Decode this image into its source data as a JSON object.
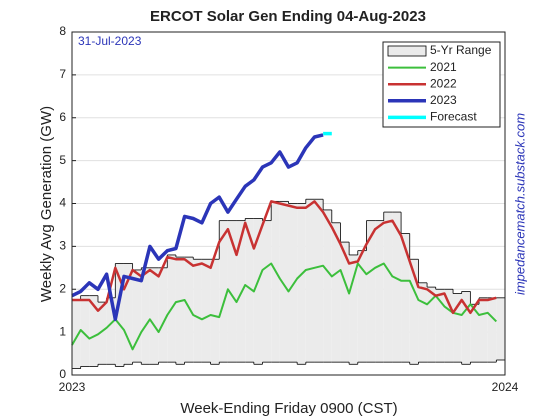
{
  "chart_data": {
    "type": "line",
    "title": "ERCOT Solar Gen Ending 04-Aug-2023",
    "annotation": "31-Jul-2023",
    "watermark": "impedancematch.substack.com",
    "x_label": "Week-Ending Friday 0900 (CST)",
    "y_label": "Weekly Avg Generation (GW)",
    "xlim": [
      2023,
      2024
    ],
    "xticks": [
      2023,
      2024
    ],
    "ylim": [
      0,
      8
    ],
    "yticks": [
      0,
      1,
      2,
      3,
      4,
      5,
      6,
      7,
      8
    ],
    "grid": true,
    "legend": "upper right",
    "x": [
      2023,
      2023.02,
      2023.04,
      2023.06,
      2023.08,
      2023.1,
      2023.12,
      2023.14,
      2023.16,
      2023.18,
      2023.2,
      2023.22,
      2023.24,
      2023.26,
      2023.28,
      2023.3,
      2023.32,
      2023.34,
      2023.36,
      2023.38,
      2023.4,
      2023.42,
      2023.44,
      2023.46,
      2023.48,
      2023.5,
      2023.52,
      2023.54,
      2023.56,
      2023.58,
      2023.6,
      2023.62,
      2023.64,
      2023.66,
      2023.68,
      2023.7,
      2023.72,
      2023.74,
      2023.76,
      2023.78,
      2023.8,
      2023.82,
      2023.84,
      2023.86,
      2023.88,
      2023.9,
      2023.92,
      2023.94,
      2023.96,
      2023.98
    ],
    "range": {
      "name": "5-Yr Range",
      "color": "#ebebeb",
      "high": [
        1.75,
        1.85,
        1.85,
        1.7,
        1.8,
        2.6,
        2.6,
        2.45,
        2.5,
        2.5,
        2.5,
        2.8,
        2.75,
        2.75,
        2.7,
        2.7,
        2.7,
        3.6,
        3.6,
        3.6,
        3.65,
        3.65,
        3.6,
        4.05,
        4.05,
        4.0,
        4.0,
        4.1,
        4.1,
        3.85,
        3.55,
        3.1,
        2.8,
        2.9,
        3.6,
        3.6,
        3.8,
        3.8,
        3.3,
        2.7,
        2.15,
        2.05,
        2.0,
        2.0,
        1.9,
        1.95,
        1.65,
        1.8,
        1.8,
        1.8
      ],
      "low": [
        0.15,
        0.2,
        0.2,
        0.25,
        0.25,
        0.2,
        0.25,
        0.3,
        0.25,
        0.25,
        0.3,
        0.3,
        0.25,
        0.3,
        0.3,
        0.3,
        0.25,
        0.3,
        0.3,
        0.3,
        0.3,
        0.25,
        0.3,
        0.3,
        0.3,
        0.3,
        0.25,
        0.3,
        0.3,
        0.3,
        0.3,
        0.3,
        0.25,
        0.3,
        0.3,
        0.3,
        0.3,
        0.3,
        0.3,
        0.25,
        0.3,
        0.3,
        0.3,
        0.3,
        0.3,
        0.25,
        0.3,
        0.3,
        0.3,
        0.35
      ]
    },
    "series": [
      {
        "name": "2021",
        "color": "#3cbf3c",
        "values": [
          0.7,
          1.05,
          0.85,
          0.95,
          1.1,
          1.3,
          1.05,
          0.6,
          1.0,
          1.3,
          1.0,
          1.4,
          1.7,
          1.75,
          1.4,
          1.3,
          1.4,
          1.35,
          2.0,
          1.7,
          2.1,
          1.95,
          2.45,
          2.6,
          2.25,
          1.95,
          2.25,
          2.45,
          2.5,
          2.55,
          2.3,
          2.45,
          1.9,
          2.6,
          2.35,
          2.5,
          2.6,
          2.3,
          2.2,
          2.2,
          1.75,
          1.65,
          1.85,
          1.6,
          1.45,
          1.4,
          1.65,
          1.4,
          1.45,
          1.25
        ]
      },
      {
        "name": "2022",
        "color": "#c83232",
        "values": [
          1.75,
          1.75,
          1.75,
          1.5,
          1.7,
          2.5,
          2.0,
          2.45,
          2.3,
          2.45,
          2.3,
          2.75,
          2.7,
          2.7,
          2.55,
          2.6,
          2.5,
          3.1,
          3.4,
          2.8,
          3.55,
          2.95,
          3.5,
          4.05,
          4.0,
          3.95,
          3.9,
          3.9,
          4.05,
          3.8,
          3.45,
          3.05,
          2.6,
          2.65,
          3.05,
          3.4,
          3.55,
          3.6,
          3.25,
          2.65,
          2.05,
          2.0,
          1.85,
          1.9,
          1.45,
          1.75,
          1.45,
          1.75,
          1.75,
          1.8
        ]
      },
      {
        "name": "2023",
        "color": "#2b35b8",
        "values": [
          1.85,
          1.95,
          2.15,
          2.0,
          2.35,
          1.3,
          2.3,
          2.25,
          2.2,
          3.0,
          2.7,
          2.9,
          2.95,
          3.7,
          3.65,
          3.55,
          4.0,
          4.15,
          3.8,
          4.1,
          4.4,
          4.55,
          4.85,
          4.95,
          5.2,
          4.85,
          4.95,
          5.3,
          5.55,
          5.6,
          null,
          null,
          null,
          null,
          null,
          null,
          null,
          null,
          null,
          null,
          null,
          null,
          null,
          null,
          null,
          null,
          null,
          null,
          null,
          null
        ]
      },
      {
        "name": "Forecast",
        "color": "#00ffff",
        "values": [
          null,
          null,
          null,
          null,
          null,
          null,
          null,
          null,
          null,
          null,
          null,
          null,
          null,
          null,
          null,
          null,
          null,
          null,
          null,
          null,
          null,
          null,
          null,
          null,
          null,
          null,
          null,
          null,
          null,
          5.63,
          5.63,
          null,
          null,
          null,
          null,
          null,
          null,
          null,
          null,
          null,
          null,
          null,
          null,
          null,
          null,
          null,
          null,
          null,
          null,
          null
        ]
      }
    ]
  }
}
